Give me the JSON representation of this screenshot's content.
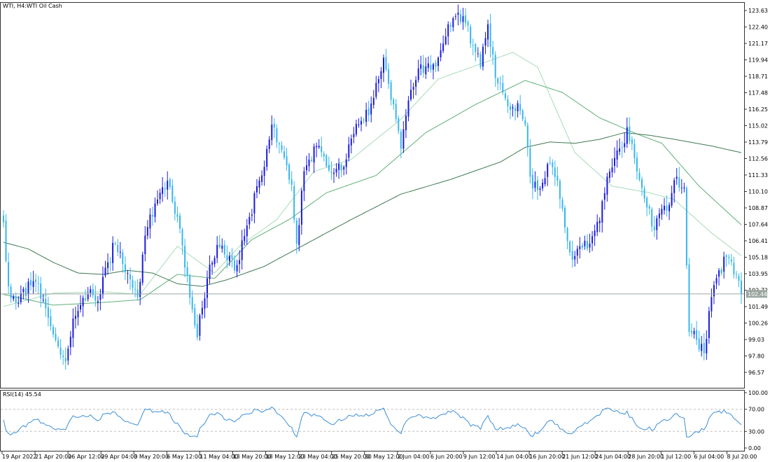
{
  "header": {
    "symbol_label": "WTI, H4:",
    "instrument_name": "WTI Oil Cash"
  },
  "rsi": {
    "label": "RSI(14) 45.54",
    "levels": [
      70,
      30
    ],
    "ticks": [
      "100.00",
      "70.00",
      "30.00",
      "0.00"
    ]
  },
  "price_axis": {
    "ticks": [
      "123.63",
      "122.40",
      "121.17",
      "119.94",
      "118.71",
      "117.48",
      "116.25",
      "115.02",
      "113.79",
      "112.56",
      "111.33",
      "110.10",
      "108.87",
      "107.64",
      "106.41",
      "105.18",
      "103.95",
      "102.72",
      "101.49",
      "100.26",
      "99.03",
      "97.80",
      "96.57"
    ],
    "current_price": "102.44"
  },
  "time_axis": {
    "labels": [
      "19 Apr 2022",
      "21 Apr 20:00",
      "26 Apr 12:00",
      "29 Apr 04:00",
      "3 May 20:00",
      "6 May 12:00",
      "11 May 04:00",
      "13 May 20:00",
      "18 May 12:00",
      "23 May 04:00",
      "25 May 20:00",
      "30 May 12:00",
      "2 Jun 04:00",
      "6 Jun 20:00",
      "9 Jun 12:00",
      "14 Jun 04:00",
      "16 Jun 20:00",
      "21 Jun 12:00",
      "24 Jun 04:00",
      "28 Jun 20:00",
      "1 Jul 12:00",
      "6 Jul 04:00",
      "8 Jul 20:00"
    ]
  },
  "colors": {
    "bull": "#1a1adb",
    "bear": "#36b5ee",
    "ma_fast": "#a6dcb8",
    "ma_mid": "#5fae77",
    "ma_slow": "#3e7a52",
    "rsi_line": "#3a8fd8",
    "grid_level": "#c0c0c0",
    "price_line": "#9aa6a0"
  },
  "chart_data": {
    "type": "candlestick",
    "symbol": "WTI",
    "timeframe": "H4",
    "y_range": [
      96.0,
      124.2
    ],
    "rsi_range": [
      0,
      100
    ],
    "anchors": [
      [
        0,
        107.8
      ],
      [
        2,
        103.0
      ],
      [
        5,
        101.8
      ],
      [
        12,
        103.4
      ],
      [
        16,
        102.0
      ],
      [
        22,
        98.5
      ],
      [
        25,
        97.4
      ],
      [
        28,
        100.6
      ],
      [
        31,
        101.6
      ],
      [
        34,
        102.4
      ],
      [
        38,
        101.9
      ],
      [
        42,
        104.8
      ],
      [
        45,
        106.2
      ],
      [
        50,
        104.0
      ],
      [
        54,
        102.2
      ],
      [
        57,
        106.8
      ],
      [
        61,
        109.2
      ],
      [
        66,
        110.9
      ],
      [
        70,
        108.2
      ],
      [
        74,
        103.8
      ],
      [
        78,
        99.2
      ],
      [
        82,
        103.6
      ],
      [
        86,
        106.1
      ],
      [
        90,
        105.0
      ],
      [
        94,
        104.6
      ],
      [
        99,
        108.2
      ],
      [
        104,
        111.3
      ],
      [
        108,
        115.1
      ],
      [
        112,
        113.2
      ],
      [
        116,
        110.6
      ],
      [
        118,
        106.2
      ],
      [
        121,
        111.6
      ],
      [
        126,
        113.5
      ],
      [
        130,
        112.0
      ],
      [
        134,
        111.8
      ],
      [
        138,
        112.5
      ],
      [
        141,
        114.4
      ],
      [
        145,
        115.4
      ],
      [
        149,
        117.1
      ],
      [
        153,
        120.1
      ],
      [
        157,
        116.6
      ],
      [
        160,
        113.3
      ],
      [
        164,
        117.7
      ],
      [
        168,
        119.6
      ],
      [
        172,
        119.2
      ],
      [
        175,
        120.1
      ],
      [
        179,
        122.6
      ],
      [
        182,
        123.2
      ],
      [
        186,
        122.7
      ],
      [
        189,
        121.0
      ],
      [
        192,
        119.4
      ],
      [
        195,
        122.6
      ],
      [
        198,
        118.6
      ],
      [
        201,
        117.5
      ],
      [
        204,
        116.2
      ],
      [
        207,
        116.7
      ],
      [
        210,
        115.1
      ],
      [
        212,
        111.2
      ],
      [
        215,
        110.2
      ],
      [
        218,
        111.1
      ],
      [
        220,
        112.2
      ],
      [
        223,
        110.9
      ],
      [
        226,
        107.4
      ],
      [
        229,
        105.0
      ],
      [
        232,
        106.0
      ],
      [
        236,
        106.2
      ],
      [
        240,
        107.9
      ],
      [
        243,
        111.2
      ],
      [
        246,
        112.6
      ],
      [
        249,
        113.4
      ],
      [
        251,
        114.9
      ],
      [
        254,
        112.6
      ],
      [
        256,
        111.0
      ],
      [
        259,
        108.9
      ],
      [
        262,
        107.2
      ],
      [
        265,
        108.8
      ],
      [
        268,
        109.1
      ],
      [
        271,
        111.2
      ],
      [
        274,
        110.4
      ],
      [
        276,
        99.6
      ],
      [
        279,
        99.0
      ],
      [
        282,
        98.0
      ],
      [
        285,
        102.2
      ],
      [
        288,
        104.2
      ],
      [
        291,
        105.2
      ],
      [
        294,
        103.9
      ],
      [
        297,
        102.44
      ]
    ],
    "moving_averages": [
      {
        "period_color": "ma_fast",
        "points": [
          [
            0,
            101.5
          ],
          [
            20,
            102.5
          ],
          [
            40,
            102.6
          ],
          [
            55,
            102.4
          ],
          [
            70,
            106.0
          ],
          [
            85,
            104.0
          ],
          [
            95,
            106.0
          ],
          [
            110,
            108.0
          ],
          [
            125,
            111.6
          ],
          [
            140,
            112.5
          ],
          [
            160,
            115.5
          ],
          [
            175,
            118.5
          ],
          [
            190,
            119.5
          ],
          [
            205,
            120.5
          ],
          [
            215,
            119.4
          ],
          [
            230,
            113.0
          ],
          [
            245,
            110.5
          ],
          [
            260,
            110.0
          ],
          [
            270,
            109.5
          ],
          [
            285,
            107.0
          ],
          [
            297,
            105.3
          ]
        ]
      },
      {
        "period_color": "ma_mid",
        "points": [
          [
            0,
            102.4
          ],
          [
            20,
            101.6
          ],
          [
            40,
            101.8
          ],
          [
            55,
            102.0
          ],
          [
            70,
            103.9
          ],
          [
            85,
            103.6
          ],
          [
            100,
            106.5
          ],
          [
            115,
            108.0
          ],
          [
            130,
            110.0
          ],
          [
            150,
            111.3
          ],
          [
            170,
            114.5
          ],
          [
            190,
            116.6
          ],
          [
            210,
            118.4
          ],
          [
            225,
            117.5
          ],
          [
            240,
            115.6
          ],
          [
            255,
            114.4
          ],
          [
            265,
            113.7
          ],
          [
            280,
            110.5
          ],
          [
            297,
            107.6
          ]
        ]
      },
      {
        "period_color": "ma_slow",
        "points": [
          [
            0,
            106.3
          ],
          [
            10,
            105.8
          ],
          [
            20,
            104.8
          ],
          [
            30,
            104.0
          ],
          [
            40,
            103.9
          ],
          [
            50,
            104.2
          ],
          [
            60,
            104.0
          ],
          [
            70,
            103.2
          ],
          [
            80,
            103.0
          ],
          [
            90,
            103.5
          ],
          [
            105,
            104.5
          ],
          [
            120,
            106.0
          ],
          [
            140,
            108.0
          ],
          [
            160,
            109.9
          ],
          [
            180,
            111.0
          ],
          [
            200,
            112.3
          ],
          [
            210,
            113.4
          ],
          [
            220,
            113.8
          ],
          [
            230,
            113.7
          ],
          [
            240,
            114.0
          ],
          [
            250,
            114.5
          ],
          [
            260,
            114.3
          ],
          [
            270,
            114.0
          ],
          [
            285,
            113.5
          ],
          [
            297,
            113.0
          ]
        ]
      }
    ]
  }
}
